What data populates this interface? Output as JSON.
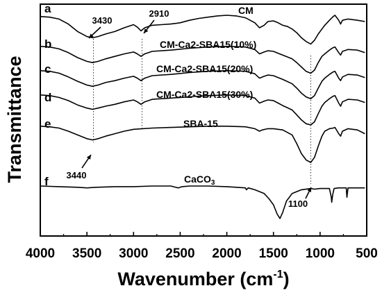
{
  "chart_data": {
    "type": "line",
    "title": "",
    "xlabel": "Wavenumber (cm",
    "xlabel_sup": "-1",
    "xlabel_close": ")",
    "ylabel": "Transmittance",
    "xlim": [
      4000,
      500
    ],
    "x_reversed": true,
    "y_ticks_shown": false,
    "x_ticks": [
      "4000",
      "3500",
      "3000",
      "2500",
      "2000",
      "1500",
      "1000",
      "500"
    ],
    "x_tick_values": [
      4000,
      3500,
      3000,
      2500,
      2000,
      1500,
      1000,
      500
    ],
    "series": [
      {
        "letter": "a",
        "name": "CM",
        "baseline": 0,
        "points": [
          [
            4000,
            0.2
          ],
          [
            3900,
            0.3
          ],
          [
            3800,
            0.6
          ],
          [
            3700,
            1.4
          ],
          [
            3600,
            2.6
          ],
          [
            3500,
            3.4
          ],
          [
            3440,
            3.6
          ],
          [
            3380,
            3.4
          ],
          [
            3300,
            3.0
          ],
          [
            3200,
            2.6
          ],
          [
            3100,
            2.0
          ],
          [
            3000,
            1.5
          ],
          [
            2960,
            1.9
          ],
          [
            2920,
            2.5
          ],
          [
            2880,
            2.0
          ],
          [
            2800,
            1.6
          ],
          [
            2700,
            1.5
          ],
          [
            2600,
            1.4
          ],
          [
            2500,
            1.2
          ],
          [
            2400,
            0.8
          ],
          [
            2300,
            0.5
          ],
          [
            2200,
            0.3
          ],
          [
            2100,
            0.1
          ],
          [
            2000,
            0.0
          ],
          [
            1900,
            0.1
          ],
          [
            1800,
            0.4
          ],
          [
            1700,
            1.2
          ],
          [
            1650,
            2.0
          ],
          [
            1600,
            1.6
          ],
          [
            1560,
            1.0
          ],
          [
            1500,
            0.9
          ],
          [
            1450,
            1.2
          ],
          [
            1400,
            1.6
          ],
          [
            1350,
            1.8
          ],
          [
            1300,
            2.2
          ],
          [
            1250,
            2.8
          ],
          [
            1200,
            3.6
          ],
          [
            1150,
            4.2
          ],
          [
            1100,
            4.6
          ],
          [
            1060,
            4.0
          ],
          [
            1020,
            3.0
          ],
          [
            980,
            2.2
          ],
          [
            950,
            1.6
          ],
          [
            900,
            0.8
          ],
          [
            860,
            0.2
          ],
          [
            840,
            0.0
          ],
          [
            800,
            0.8
          ],
          [
            780,
            1.4
          ],
          [
            760,
            0.8
          ],
          [
            700,
            0.6
          ],
          [
            600,
            0.8
          ],
          [
            520,
            1.0
          ]
        ]
      },
      {
        "letter": "b",
        "name": "CM-Ca2-SBA15(10%)",
        "baseline": 1,
        "points": [
          [
            4000,
            0.2
          ],
          [
            3900,
            0.3
          ],
          [
            3800,
            0.6
          ],
          [
            3700,
            1.2
          ],
          [
            3600,
            2.0
          ],
          [
            3500,
            2.6
          ],
          [
            3440,
            2.8
          ],
          [
            3380,
            2.6
          ],
          [
            3300,
            2.2
          ],
          [
            3200,
            1.8
          ],
          [
            3100,
            1.4
          ],
          [
            3000,
            1.1
          ],
          [
            2960,
            1.4
          ],
          [
            2920,
            1.8
          ],
          [
            2880,
            1.4
          ],
          [
            2800,
            1.0
          ],
          [
            2600,
            0.8
          ],
          [
            2400,
            0.5
          ],
          [
            2200,
            0.3
          ],
          [
            2000,
            0.2
          ],
          [
            1800,
            0.3
          ],
          [
            1700,
            0.7
          ],
          [
            1650,
            1.4
          ],
          [
            1600,
            1.1
          ],
          [
            1560,
            0.9
          ],
          [
            1500,
            1.0
          ],
          [
            1450,
            1.3
          ],
          [
            1400,
            1.6
          ],
          [
            1300,
            2.2
          ],
          [
            1250,
            2.8
          ],
          [
            1200,
            3.5
          ],
          [
            1150,
            4.2
          ],
          [
            1100,
            4.5
          ],
          [
            1060,
            4.0
          ],
          [
            1020,
            2.8
          ],
          [
            980,
            1.8
          ],
          [
            950,
            1.4
          ],
          [
            900,
            0.8
          ],
          [
            860,
            0.4
          ],
          [
            840,
            0.3
          ],
          [
            800,
            1.2
          ],
          [
            780,
            1.6
          ],
          [
            760,
            1.0
          ],
          [
            700,
            0.7
          ],
          [
            600,
            0.8
          ],
          [
            520,
            1.2
          ]
        ]
      },
      {
        "letter": "c",
        "name": "CM-Ca2-SBA15(20%)",
        "baseline": 2,
        "points": [
          [
            4000,
            0.2
          ],
          [
            3900,
            0.3
          ],
          [
            3800,
            0.6
          ],
          [
            3700,
            1.2
          ],
          [
            3600,
            1.9
          ],
          [
            3500,
            2.5
          ],
          [
            3440,
            2.7
          ],
          [
            3380,
            2.5
          ],
          [
            3300,
            2.1
          ],
          [
            3200,
            1.8
          ],
          [
            3100,
            1.4
          ],
          [
            3000,
            1.1
          ],
          [
            2960,
            1.4
          ],
          [
            2920,
            1.8
          ],
          [
            2880,
            1.4
          ],
          [
            2800,
            1.0
          ],
          [
            2600,
            0.8
          ],
          [
            2400,
            0.5
          ],
          [
            2200,
            0.3
          ],
          [
            2000,
            0.2
          ],
          [
            1800,
            0.3
          ],
          [
            1700,
            0.7
          ],
          [
            1650,
            1.4
          ],
          [
            1600,
            1.1
          ],
          [
            1560,
            0.9
          ],
          [
            1500,
            1.0
          ],
          [
            1450,
            1.3
          ],
          [
            1400,
            1.6
          ],
          [
            1300,
            2.3
          ],
          [
            1250,
            3.0
          ],
          [
            1200,
            3.8
          ],
          [
            1150,
            4.4
          ],
          [
            1100,
            4.7
          ],
          [
            1060,
            4.2
          ],
          [
            1020,
            3.0
          ],
          [
            980,
            1.9
          ],
          [
            950,
            1.4
          ],
          [
            900,
            0.8
          ],
          [
            860,
            0.4
          ],
          [
            840,
            0.3
          ],
          [
            800,
            1.4
          ],
          [
            780,
            1.8
          ],
          [
            760,
            1.2
          ],
          [
            700,
            0.8
          ],
          [
            600,
            0.9
          ],
          [
            520,
            1.3
          ]
        ]
      },
      {
        "letter": "d",
        "name": "CM-Ca2-SBA15(30%)",
        "baseline": 3,
        "points": [
          [
            4000,
            0.2
          ],
          [
            3900,
            0.3
          ],
          [
            3800,
            0.6
          ],
          [
            3700,
            1.1
          ],
          [
            3600,
            1.8
          ],
          [
            3500,
            2.3
          ],
          [
            3440,
            2.5
          ],
          [
            3380,
            2.3
          ],
          [
            3300,
            2.0
          ],
          [
            3200,
            1.7
          ],
          [
            3100,
            1.3
          ],
          [
            3000,
            1.0
          ],
          [
            2960,
            1.3
          ],
          [
            2920,
            1.7
          ],
          [
            2880,
            1.3
          ],
          [
            2800,
            0.9
          ],
          [
            2600,
            0.7
          ],
          [
            2400,
            0.5
          ],
          [
            2200,
            0.3
          ],
          [
            2000,
            0.2
          ],
          [
            1800,
            0.3
          ],
          [
            1700,
            0.7
          ],
          [
            1650,
            1.5
          ],
          [
            1600,
            1.2
          ],
          [
            1560,
            1.0
          ],
          [
            1500,
            1.1
          ],
          [
            1450,
            1.5
          ],
          [
            1400,
            1.9
          ],
          [
            1300,
            2.6
          ],
          [
            1250,
            3.4
          ],
          [
            1200,
            4.2
          ],
          [
            1150,
            4.8
          ],
          [
            1100,
            5.0
          ],
          [
            1060,
            4.5
          ],
          [
            1020,
            3.2
          ],
          [
            980,
            2.0
          ],
          [
            950,
            1.4
          ],
          [
            900,
            0.8
          ],
          [
            860,
            0.4
          ],
          [
            840,
            0.3
          ],
          [
            800,
            1.5
          ],
          [
            780,
            2.0
          ],
          [
            760,
            1.3
          ],
          [
            700,
            0.9
          ],
          [
            600,
            1.0
          ],
          [
            520,
            1.4
          ]
        ]
      },
      {
        "letter": "e",
        "name": "SBA-15",
        "baseline": 4,
        "points": [
          [
            4000,
            0.2
          ],
          [
            3900,
            0.3
          ],
          [
            3800,
            0.5
          ],
          [
            3700,
            1.0
          ],
          [
            3600,
            1.6
          ],
          [
            3500,
            2.2
          ],
          [
            3440,
            2.4
          ],
          [
            3380,
            2.2
          ],
          [
            3300,
            1.8
          ],
          [
            3200,
            1.4
          ],
          [
            3100,
            1.0
          ],
          [
            3000,
            0.7
          ],
          [
            2800,
            0.5
          ],
          [
            2600,
            0.4
          ],
          [
            2400,
            0.3
          ],
          [
            2200,
            0.2
          ],
          [
            2000,
            0.2
          ],
          [
            1800,
            0.3
          ],
          [
            1700,
            0.6
          ],
          [
            1650,
            1.0
          ],
          [
            1620,
            0.8
          ],
          [
            1560,
            0.6
          ],
          [
            1500,
            0.6
          ],
          [
            1400,
            0.8
          ],
          [
            1300,
            1.6
          ],
          [
            1250,
            3.0
          ],
          [
            1200,
            4.6
          ],
          [
            1150,
            5.6
          ],
          [
            1100,
            6.0
          ],
          [
            1060,
            5.2
          ],
          [
            1020,
            3.4
          ],
          [
            980,
            1.8
          ],
          [
            950,
            1.0
          ],
          [
            900,
            0.6
          ],
          [
            860,
            0.5
          ],
          [
            840,
            0.4
          ],
          [
            800,
            1.4
          ],
          [
            780,
            1.8
          ],
          [
            760,
            1.0
          ],
          [
            700,
            0.6
          ],
          [
            600,
            0.8
          ],
          [
            520,
            1.4
          ]
        ]
      },
      {
        "letter": "f",
        "name": "CaCO",
        "name_sub": "3",
        "baseline": 5,
        "points": [
          [
            4000,
            0.0
          ],
          [
            3800,
            0.1
          ],
          [
            3600,
            0.2
          ],
          [
            3500,
            0.3
          ],
          [
            3400,
            0.2
          ],
          [
            3200,
            0.1
          ],
          [
            3000,
            0.1
          ],
          [
            2800,
            0.0
          ],
          [
            2600,
            0.0
          ],
          [
            2520,
            0.3
          ],
          [
            2480,
            0.1
          ],
          [
            2400,
            0.0
          ],
          [
            2200,
            0.0
          ],
          [
            2000,
            0.1
          ],
          [
            1800,
            0.3
          ],
          [
            1790,
            0.6
          ],
          [
            1770,
            0.3
          ],
          [
            1700,
            0.6
          ],
          [
            1600,
            1.2
          ],
          [
            1550,
            2.0
          ],
          [
            1500,
            3.0
          ],
          [
            1460,
            4.5
          ],
          [
            1430,
            5.2
          ],
          [
            1400,
            4.2
          ],
          [
            1360,
            2.4
          ],
          [
            1300,
            1.2
          ],
          [
            1200,
            0.6
          ],
          [
            1100,
            0.4
          ],
          [
            1060,
            0.5
          ],
          [
            1000,
            0.4
          ],
          [
            900,
            0.4
          ],
          [
            880,
            1.8
          ],
          [
            875,
            2.6
          ],
          [
            865,
            1.4
          ],
          [
            850,
            0.4
          ],
          [
            800,
            0.3
          ],
          [
            720,
            0.3
          ],
          [
            712,
            1.8
          ],
          [
            700,
            0.3
          ],
          [
            600,
            0.3
          ],
          [
            520,
            0.3
          ]
        ]
      }
    ],
    "annotations": [
      {
        "text": "3430",
        "wavenumber": 3430
      },
      {
        "text": "2910",
        "wavenumber": 2910
      },
      {
        "text": "3440",
        "wavenumber": 3440
      },
      {
        "text": "1100",
        "wavenumber": 1100
      }
    ]
  }
}
